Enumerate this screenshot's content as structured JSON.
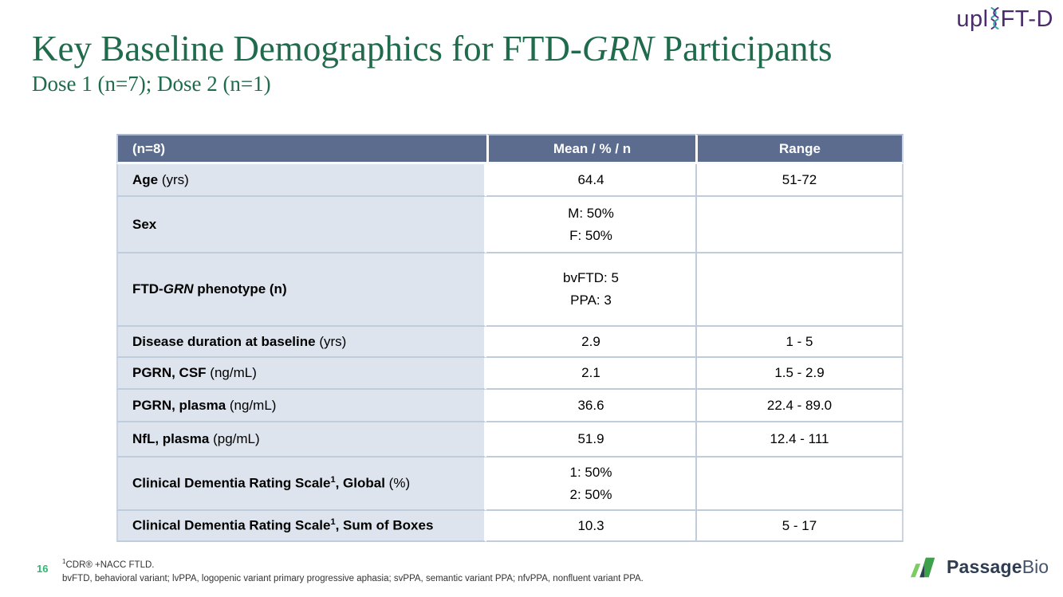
{
  "brand_top": {
    "pre": "upl",
    "post": "FT-D",
    "purple": "#4b2c6b",
    "dna_teal": "#2ba7a3",
    "dna_purple": "#5c2d87"
  },
  "title": {
    "pre": "Key Baseline Demographics for FTD-",
    "italic": "GRN",
    "post": " Participants",
    "color": "#1f6b4c"
  },
  "subtitle": "Dose 1 (n=7); Dose 2 (n=1)",
  "stray_dot": ".",
  "table": {
    "header": {
      "col1": "(n=8)",
      "col2": "Mean / % / n",
      "col3": "Range"
    },
    "header_bg": "#5b6c8e",
    "label_col_bg": "#dde4ee",
    "border_color": "#bfccdc",
    "rows": [
      {
        "label": [
          {
            "t": "Age",
            "b": true
          },
          {
            "t": " (yrs)"
          }
        ],
        "mean": [
          "64.4"
        ],
        "range": "51-72"
      },
      {
        "label": [
          {
            "t": "Sex",
            "b": true
          }
        ],
        "mean": [
          "M: 50%",
          "F: 50%"
        ],
        "range": ""
      },
      {
        "label": [
          {
            "t": "FTD-",
            "b": true
          },
          {
            "t": "GRN",
            "b": true,
            "i": true
          },
          {
            "t": " phenotype (n)",
            "b": true
          }
        ],
        "mean": [
          "bvFTD: 5",
          "PPA: 3"
        ],
        "range": ""
      },
      {
        "label": [
          {
            "t": "Disease duration at baseline",
            "b": true
          },
          {
            "t": " (yrs)"
          }
        ],
        "mean": [
          "2.9"
        ],
        "range": "1 - 5"
      },
      {
        "label": [
          {
            "t": "PGRN, CSF",
            "b": true
          },
          {
            "t": " (ng/mL)"
          }
        ],
        "mean": [
          "2.1"
        ],
        "range": "1.5 - 2.9"
      },
      {
        "label": [
          {
            "t": "PGRN, plasma",
            "b": true
          },
          {
            "t": " (ng/mL)"
          }
        ],
        "mean": [
          "36.6"
        ],
        "range": "22.4 - 89.0"
      },
      {
        "label": [
          {
            "t": "NfL, plasma",
            "b": true
          },
          {
            "t": " (pg/mL)"
          }
        ],
        "mean": [
          "51.9"
        ],
        "range": "12.4 - 111"
      },
      {
        "label": [
          {
            "t": "Clinical Dementia Rating Scale",
            "b": true
          },
          {
            "t": "1",
            "b": true,
            "sup": true
          },
          {
            "t": ", Global",
            "b": true
          },
          {
            "t": " (%)"
          }
        ],
        "mean": [
          "1: 50%",
          "2: 50%"
        ],
        "range": ""
      },
      {
        "label": [
          {
            "t": "Clinical Dementia Rating Scale",
            "b": true
          },
          {
            "t": "1",
            "b": true,
            "sup": true
          },
          {
            "t": ", Sum of Boxes",
            "b": true
          }
        ],
        "mean": [
          "10.3"
        ],
        "range": "5 - 17"
      }
    ]
  },
  "footer": {
    "page_number": "16",
    "page_number_color": "#2fb673",
    "footnote1_sup": "1",
    "footnote1": "CDR® +NACC FTLD.",
    "footnote2": "bvFTD, behavioral variant; lvPPA, logopenic variant primary progressive aphasia; svPPA, semantic variant PPA; nfvPPA, nonfluent variant PPA."
  },
  "brand_bottom": {
    "bold": "Passage",
    "light": "Bio",
    "navy": "#2e3d51",
    "green_light": "#7ecb66",
    "green_dark": "#3ea04b"
  }
}
